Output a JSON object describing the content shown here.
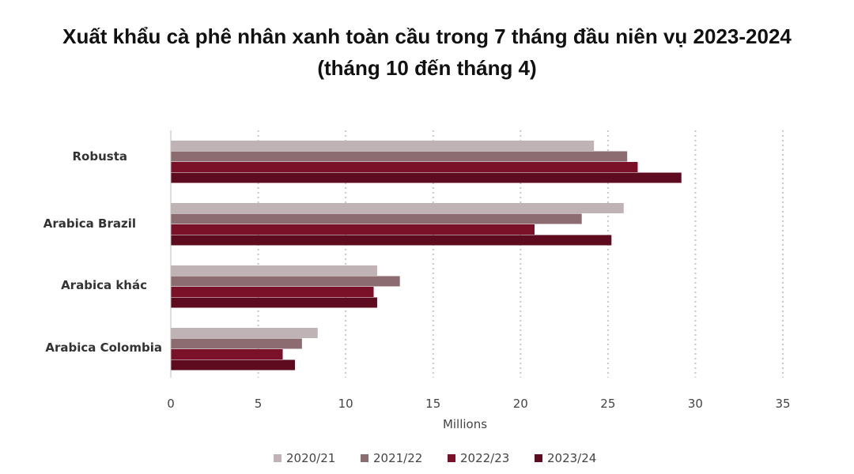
{
  "chart_data": {
    "type": "bar",
    "orientation": "horizontal",
    "title": "Xuất khẩu cà phê nhân xanh toàn cầu trong 7 tháng đầu niên vụ 2023-2024 (tháng 10 đến tháng 4)",
    "xlabel": "Millions",
    "ylabel": "",
    "xlim": [
      0,
      35
    ],
    "ticks": [
      0,
      5,
      10,
      15,
      20,
      25,
      30,
      35
    ],
    "grid": "vertical-dotted",
    "legend": "bottom",
    "categories": [
      "Robusta",
      "Arabica Brazil",
      "Arabica khác",
      "Arabica Colombia"
    ],
    "series": [
      {
        "name": "2020/21",
        "color": "#bfb3b5",
        "values": [
          24.2,
          25.9,
          11.8,
          8.4
        ]
      },
      {
        "name": "2021/22",
        "color": "#8c6b71",
        "values": [
          26.1,
          23.5,
          13.1,
          7.5
        ]
      },
      {
        "name": "2022/23",
        "color": "#7a1128",
        "values": [
          26.7,
          20.8,
          11.6,
          6.4
        ]
      },
      {
        "name": "2023/24",
        "color": "#5e0a1f",
        "values": [
          29.2,
          25.2,
          11.8,
          7.1
        ]
      }
    ]
  }
}
